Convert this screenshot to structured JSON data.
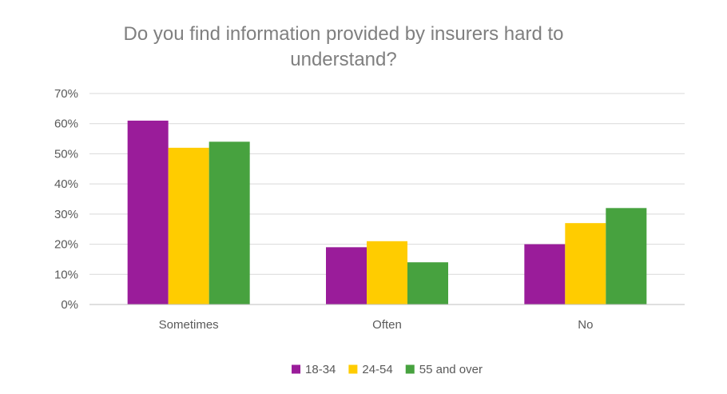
{
  "chart_data": {
    "type": "bar",
    "title_lines": [
      "Do you find information provided by insurers hard to",
      "understand?"
    ],
    "categories": [
      "Sometimes",
      "Often",
      "No"
    ],
    "series": [
      {
        "name": "18-34",
        "color": "#9a1c9a",
        "values": [
          61,
          19,
          20
        ]
      },
      {
        "name": "24-54",
        "color": "#ffcc00",
        "values": [
          52,
          21,
          27
        ]
      },
      {
        "name": "55 and over",
        "color": "#47a23f",
        "values": [
          54,
          14,
          32
        ]
      }
    ],
    "ylim": [
      0,
      70
    ],
    "yticks": [
      "0%",
      "10%",
      "20%",
      "30%",
      "40%",
      "50%",
      "60%",
      "70%"
    ],
    "grid": true,
    "legend_position": "bottom"
  }
}
